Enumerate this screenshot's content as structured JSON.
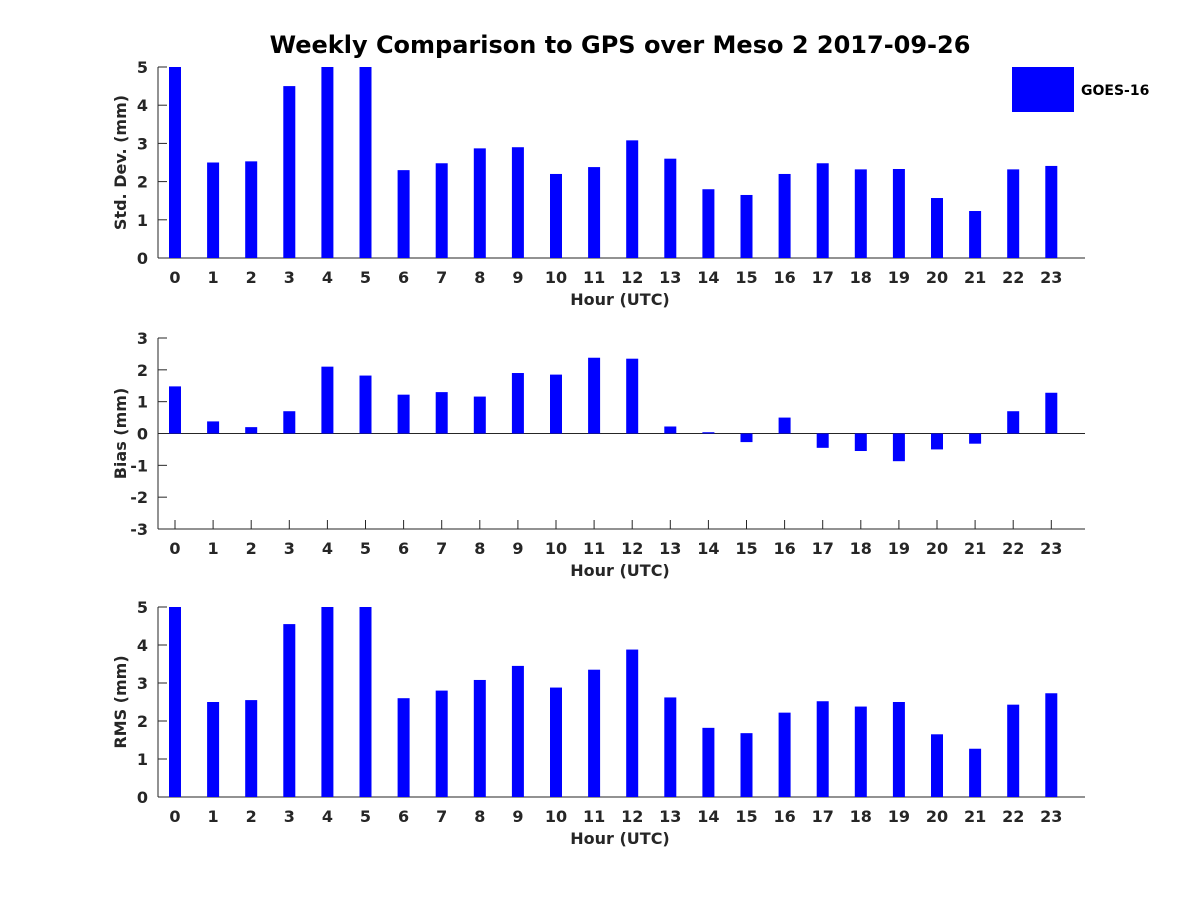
{
  "chart_data": {
    "type": "bar",
    "title": "Weekly Comparison to GPS over Meso 2 2017-09-26",
    "bar_color": "#0000ff",
    "legend": {
      "label": "GOES-16",
      "placement": "top-right"
    },
    "categories": [
      "0",
      "1",
      "2",
      "3",
      "4",
      "5",
      "6",
      "7",
      "8",
      "9",
      "10",
      "11",
      "12",
      "13",
      "14",
      "15",
      "16",
      "17",
      "18",
      "19",
      "20",
      "21",
      "22",
      "23"
    ],
    "panels": [
      {
        "name": "std-dev",
        "ylabel": "Std. Dev. (mm)",
        "xlabel": "Hour (UTC)",
        "ylim": [
          0,
          5
        ],
        "yticks": [
          "0",
          "1",
          "2",
          "3",
          "4",
          "5"
        ],
        "values": [
          5,
          2.5,
          2.53,
          4.5,
          5,
          5,
          2.3,
          2.48,
          2.87,
          2.9,
          2.2,
          2.38,
          3.08,
          2.6,
          1.8,
          1.65,
          2.2,
          2.48,
          2.32,
          2.33,
          1.57,
          1.23,
          2.32,
          2.41
        ]
      },
      {
        "name": "bias",
        "ylabel": "Bias (mm)",
        "xlabel": "Hour (UTC)",
        "ylim": [
          -3,
          3
        ],
        "yticks": [
          "-3",
          "-2",
          "-1",
          "0",
          "1",
          "2",
          "3"
        ],
        "values": [
          1.48,
          0.38,
          0.2,
          0.7,
          2.1,
          1.82,
          1.22,
          1.3,
          1.16,
          1.9,
          1.85,
          2.38,
          2.35,
          0.22,
          0.04,
          -0.27,
          0.5,
          -0.45,
          -0.55,
          -0.87,
          -0.5,
          -0.32,
          0.7,
          1.28
        ]
      },
      {
        "name": "rms",
        "ylabel": "RMS (mm)",
        "xlabel": "Hour (UTC)",
        "ylim": [
          0,
          5
        ],
        "yticks": [
          "0",
          "1",
          "2",
          "3",
          "4",
          "5"
        ],
        "values": [
          5,
          2.5,
          2.55,
          4.55,
          5,
          5,
          2.6,
          2.8,
          3.08,
          3.45,
          2.88,
          3.35,
          3.88,
          2.62,
          1.82,
          1.68,
          2.22,
          2.52,
          2.38,
          2.5,
          1.65,
          1.27,
          2.43,
          2.73
        ]
      }
    ]
  }
}
